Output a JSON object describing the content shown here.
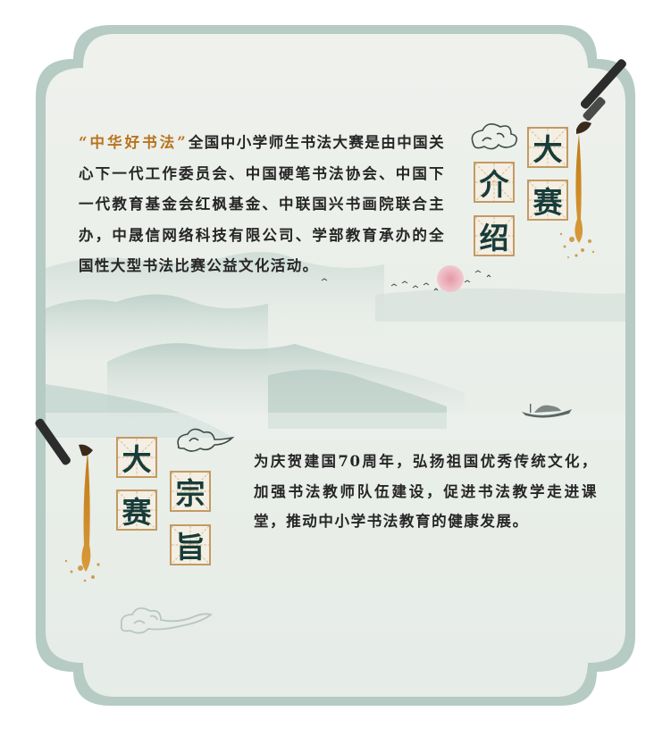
{
  "intro": {
    "title_chars": [
      "大",
      "赛",
      "介",
      "绍"
    ],
    "highlight": "“中华好书法”",
    "body": "全国中小学师生书法大赛是由中国关心下一代工作委员会、中国硬笔书法协会、中国下一代教育基金会红枫基金、中联国兴书画院联合主办，中晟信网络科技有限公司、学部教育承办的全国性大型书法比赛公益文化活动。"
  },
  "purpose": {
    "title_chars": [
      "大",
      "赛",
      "宗",
      "旨"
    ],
    "body": "为庆贺建国70周年，弘扬祖国优秀传统文化，加强书法教师队伍建设，促进书法教学走进课堂，推动中小学书法教育的健康发展。"
  },
  "colors": {
    "frame": "#b5cbc3",
    "panel": "#edf0ea",
    "accent": "#b8731d",
    "tile_border": "#c39a63",
    "title_ink": "#173c3a",
    "sun": "#e5a0ac"
  }
}
